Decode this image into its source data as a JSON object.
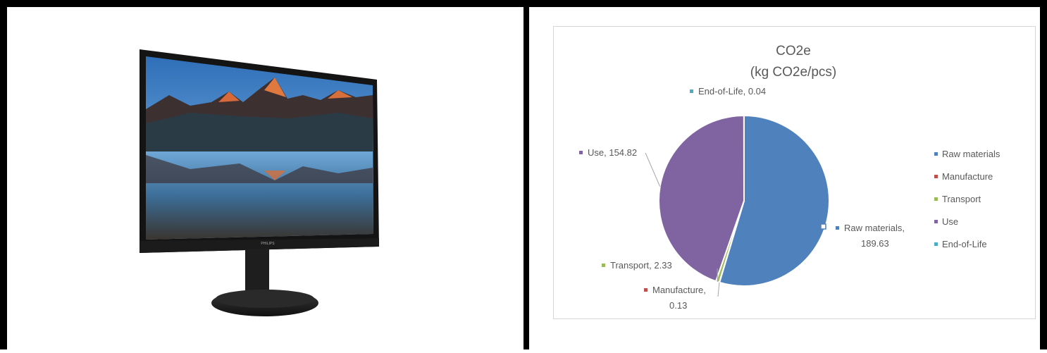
{
  "product_image": {
    "brand": "PHILIPS",
    "alt": "monitor"
  },
  "chart_data": {
    "type": "pie",
    "title": "CO2e",
    "subtitle": "(kg CO2e/pcs)",
    "series": [
      {
        "name": "Raw materials",
        "value": 189.63,
        "label_line1": "Raw materials,",
        "label_line2": "189.63",
        "color": "#4f81bd"
      },
      {
        "name": "Manufacture",
        "value": 0.13,
        "label_line1": "Manufacture,",
        "label_line2": "0.13",
        "color": "#c0504d"
      },
      {
        "name": "Transport",
        "value": 2.33,
        "label_line1": "Transport, 2.33",
        "label_line2": "",
        "color": "#9bbb59"
      },
      {
        "name": "Use",
        "value": 154.82,
        "label_line1": "Use, 154.82",
        "label_line2": "",
        "color": "#8064a2"
      },
      {
        "name": "End-of-Life",
        "value": 0.04,
        "label_line1": "End-of-Life, 0.04",
        "label_line2": "",
        "color": "#4bacc6"
      }
    ],
    "legend": [
      "Raw materials",
      "Manufacture",
      "Transport",
      "Use",
      "End-of-Life"
    ],
    "legend_position": "right"
  }
}
